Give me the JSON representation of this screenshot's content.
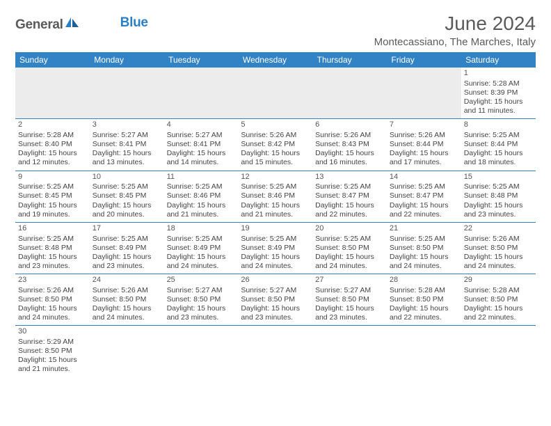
{
  "logo": {
    "part1": "General",
    "part2": "Blue"
  },
  "title": "June 2024",
  "location": "Montecassiano, The Marches, Italy",
  "colors": {
    "header_bg": "#3282c6",
    "header_fg": "#ffffff",
    "border": "#3282c6",
    "empty_bg": "#ececec",
    "text": "#444444",
    "logo_gray": "#5a5a5a",
    "logo_blue": "#2b7fc4"
  },
  "weekdays": [
    "Sunday",
    "Monday",
    "Tuesday",
    "Wednesday",
    "Thursday",
    "Friday",
    "Saturday"
  ],
  "weeks": [
    [
      null,
      null,
      null,
      null,
      null,
      null,
      {
        "d": "1",
        "sr": "5:28 AM",
        "ss": "8:39 PM",
        "dl1": "15 hours",
        "dl2": "and 11 minutes."
      }
    ],
    [
      {
        "d": "2",
        "sr": "5:28 AM",
        "ss": "8:40 PM",
        "dl1": "15 hours",
        "dl2": "and 12 minutes."
      },
      {
        "d": "3",
        "sr": "5:27 AM",
        "ss": "8:41 PM",
        "dl1": "15 hours",
        "dl2": "and 13 minutes."
      },
      {
        "d": "4",
        "sr": "5:27 AM",
        "ss": "8:41 PM",
        "dl1": "15 hours",
        "dl2": "and 14 minutes."
      },
      {
        "d": "5",
        "sr": "5:26 AM",
        "ss": "8:42 PM",
        "dl1": "15 hours",
        "dl2": "and 15 minutes."
      },
      {
        "d": "6",
        "sr": "5:26 AM",
        "ss": "8:43 PM",
        "dl1": "15 hours",
        "dl2": "and 16 minutes."
      },
      {
        "d": "7",
        "sr": "5:26 AM",
        "ss": "8:44 PM",
        "dl1": "15 hours",
        "dl2": "and 17 minutes."
      },
      {
        "d": "8",
        "sr": "5:25 AM",
        "ss": "8:44 PM",
        "dl1": "15 hours",
        "dl2": "and 18 minutes."
      }
    ],
    [
      {
        "d": "9",
        "sr": "5:25 AM",
        "ss": "8:45 PM",
        "dl1": "15 hours",
        "dl2": "and 19 minutes."
      },
      {
        "d": "10",
        "sr": "5:25 AM",
        "ss": "8:45 PM",
        "dl1": "15 hours",
        "dl2": "and 20 minutes."
      },
      {
        "d": "11",
        "sr": "5:25 AM",
        "ss": "8:46 PM",
        "dl1": "15 hours",
        "dl2": "and 21 minutes."
      },
      {
        "d": "12",
        "sr": "5:25 AM",
        "ss": "8:46 PM",
        "dl1": "15 hours",
        "dl2": "and 21 minutes."
      },
      {
        "d": "13",
        "sr": "5:25 AM",
        "ss": "8:47 PM",
        "dl1": "15 hours",
        "dl2": "and 22 minutes."
      },
      {
        "d": "14",
        "sr": "5:25 AM",
        "ss": "8:47 PM",
        "dl1": "15 hours",
        "dl2": "and 22 minutes."
      },
      {
        "d": "15",
        "sr": "5:25 AM",
        "ss": "8:48 PM",
        "dl1": "15 hours",
        "dl2": "and 23 minutes."
      }
    ],
    [
      {
        "d": "16",
        "sr": "5:25 AM",
        "ss": "8:48 PM",
        "dl1": "15 hours",
        "dl2": "and 23 minutes."
      },
      {
        "d": "17",
        "sr": "5:25 AM",
        "ss": "8:49 PM",
        "dl1": "15 hours",
        "dl2": "and 23 minutes."
      },
      {
        "d": "18",
        "sr": "5:25 AM",
        "ss": "8:49 PM",
        "dl1": "15 hours",
        "dl2": "and 24 minutes."
      },
      {
        "d": "19",
        "sr": "5:25 AM",
        "ss": "8:49 PM",
        "dl1": "15 hours",
        "dl2": "and 24 minutes."
      },
      {
        "d": "20",
        "sr": "5:25 AM",
        "ss": "8:50 PM",
        "dl1": "15 hours",
        "dl2": "and 24 minutes."
      },
      {
        "d": "21",
        "sr": "5:25 AM",
        "ss": "8:50 PM",
        "dl1": "15 hours",
        "dl2": "and 24 minutes."
      },
      {
        "d": "22",
        "sr": "5:26 AM",
        "ss": "8:50 PM",
        "dl1": "15 hours",
        "dl2": "and 24 minutes."
      }
    ],
    [
      {
        "d": "23",
        "sr": "5:26 AM",
        "ss": "8:50 PM",
        "dl1": "15 hours",
        "dl2": "and 24 minutes."
      },
      {
        "d": "24",
        "sr": "5:26 AM",
        "ss": "8:50 PM",
        "dl1": "15 hours",
        "dl2": "and 24 minutes."
      },
      {
        "d": "25",
        "sr": "5:27 AM",
        "ss": "8:50 PM",
        "dl1": "15 hours",
        "dl2": "and 23 minutes."
      },
      {
        "d": "26",
        "sr": "5:27 AM",
        "ss": "8:50 PM",
        "dl1": "15 hours",
        "dl2": "and 23 minutes."
      },
      {
        "d": "27",
        "sr": "5:27 AM",
        "ss": "8:50 PM",
        "dl1": "15 hours",
        "dl2": "and 23 minutes."
      },
      {
        "d": "28",
        "sr": "5:28 AM",
        "ss": "8:50 PM",
        "dl1": "15 hours",
        "dl2": "and 22 minutes."
      },
      {
        "d": "29",
        "sr": "5:28 AM",
        "ss": "8:50 PM",
        "dl1": "15 hours",
        "dl2": "and 22 minutes."
      }
    ],
    [
      {
        "d": "30",
        "sr": "5:29 AM",
        "ss": "8:50 PM",
        "dl1": "15 hours",
        "dl2": "and 21 minutes."
      },
      null,
      null,
      null,
      null,
      null,
      null
    ]
  ],
  "labels": {
    "sunrise": "Sunrise:",
    "sunset": "Sunset:",
    "daylight": "Daylight:"
  }
}
